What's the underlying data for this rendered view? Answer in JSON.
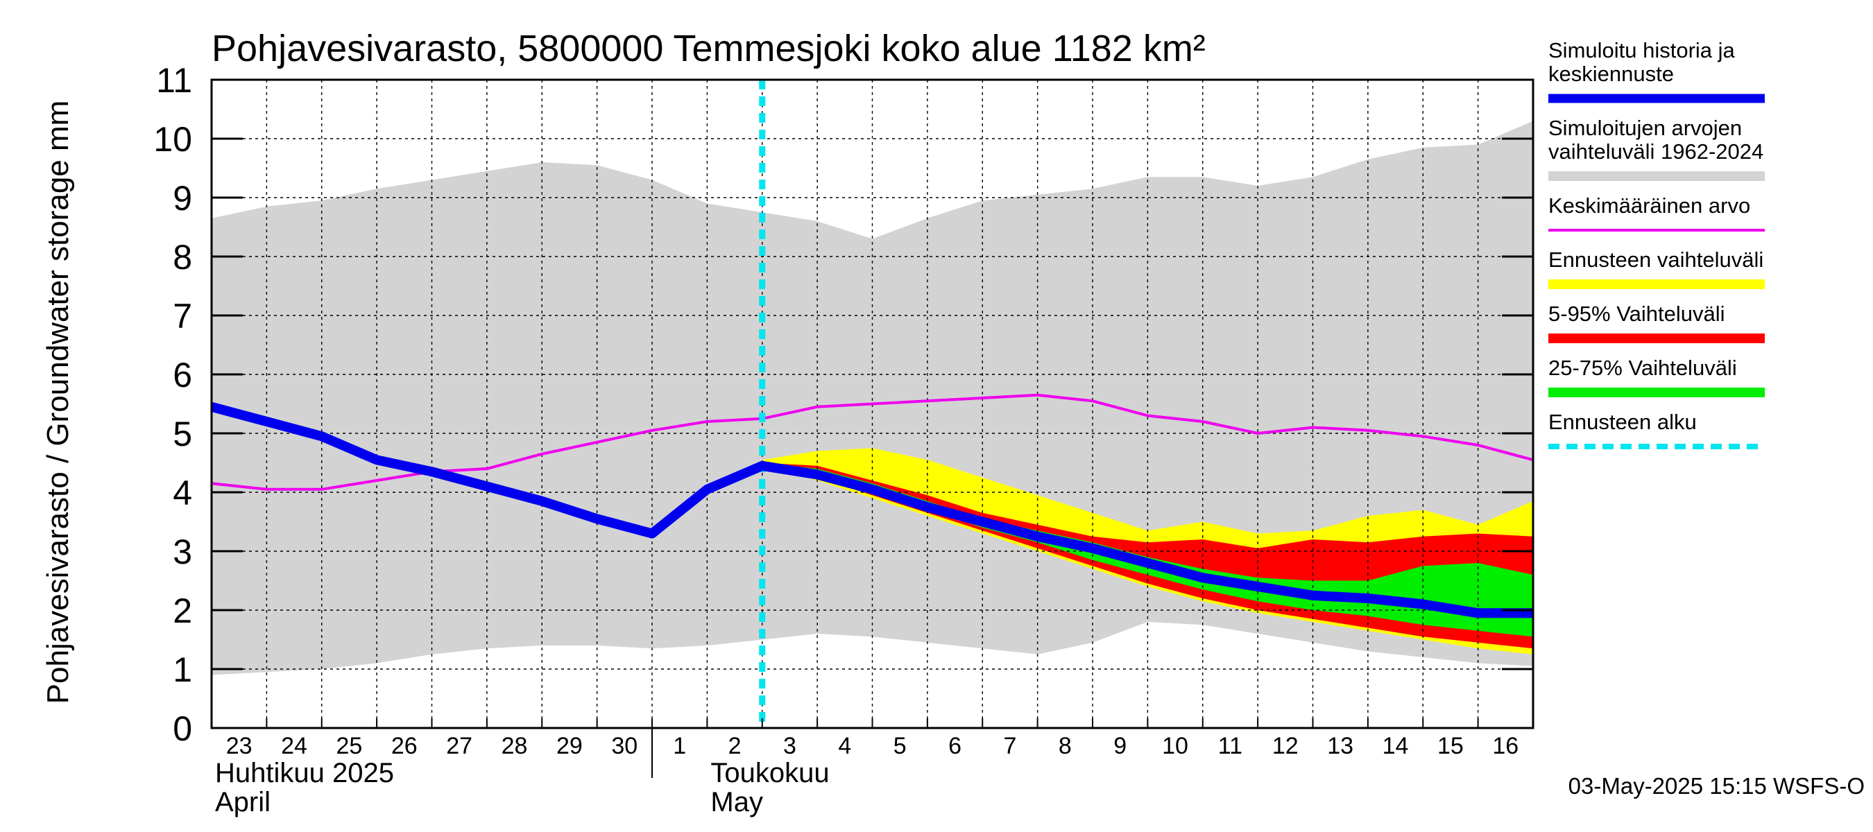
{
  "chart_data": {
    "type": "area",
    "title": "Pohjavesivarasto, 5800000 Temmesjoki koko alue 1182 km²",
    "ylabel": "Pohjavesivarasto / Groundwater storage   mm",
    "ylim": [
      0,
      11
    ],
    "yticks": [
      0,
      1,
      2,
      3,
      4,
      5,
      6,
      7,
      8,
      9,
      10,
      11
    ],
    "xlim": [
      0,
      24
    ],
    "grid": true,
    "x_tick_labels": [
      "23",
      "24",
      "25",
      "26",
      "27",
      "28",
      "29",
      "30",
      "1",
      "2",
      "3",
      "4",
      "5",
      "6",
      "7",
      "8",
      "9",
      "10",
      "11",
      "12",
      "13",
      "14",
      "15",
      "16"
    ],
    "month_labels": [
      {
        "fi": "Huhtikuu  2025",
        "en": "April",
        "x": 0
      },
      {
        "fi": "Toukokuu",
        "en": "May",
        "x": 9
      }
    ],
    "month_divider_x": 8,
    "forecast_start_x": 10,
    "timestamp": "03-May-2025 15:15 WSFS-O",
    "legend": [
      {
        "label": "Simuloitu historia ja keskiennuste",
        "color": "#0000ee",
        "style": "thick"
      },
      {
        "label": "Simuloitujen arvojen vaihteluväli 1962-2024",
        "color": "#d3d3d3",
        "style": "band"
      },
      {
        "label": "Keskimääräinen arvo",
        "color": "#ee00ee",
        "style": "thin"
      },
      {
        "label": "Ennusteen vaihteluväli",
        "color": "#ffff00",
        "style": "band"
      },
      {
        "label": "5-95% Vaihteluväli",
        "color": "#ff0000",
        "style": "band"
      },
      {
        "label": "25-75% Vaihteluväli",
        "color": "#00ee00",
        "style": "band"
      },
      {
        "label": "Ennusteen alku",
        "color": "#00e5ee",
        "style": "dashed"
      }
    ],
    "series": [
      {
        "name": "hist_range",
        "x": [
          0,
          1,
          2,
          3,
          4,
          5,
          6,
          7,
          8,
          9,
          10,
          11,
          12,
          13,
          14,
          15,
          16,
          17,
          18,
          19,
          20,
          21,
          22,
          23,
          24
        ],
        "upper": [
          8.65,
          8.85,
          8.95,
          9.15,
          9.3,
          9.45,
          9.6,
          9.55,
          9.3,
          8.9,
          8.75,
          8.6,
          8.3,
          8.65,
          8.95,
          9.05,
          9.15,
          9.35,
          9.35,
          9.2,
          9.35,
          9.65,
          9.85,
          9.9,
          10.3
        ],
        "lower": [
          0.9,
          0.95,
          1.0,
          1.1,
          1.25,
          1.35,
          1.4,
          1.4,
          1.35,
          1.4,
          1.5,
          1.6,
          1.55,
          1.45,
          1.35,
          1.25,
          1.45,
          1.8,
          1.75,
          1.6,
          1.45,
          1.3,
          1.2,
          1.1,
          1.05
        ]
      },
      {
        "name": "mean",
        "x": [
          0,
          1,
          2,
          3,
          4,
          5,
          6,
          7,
          8,
          9,
          10,
          11,
          12,
          13,
          14,
          15,
          16,
          17,
          18,
          19,
          20,
          21,
          22,
          23,
          24
        ],
        "values": [
          4.15,
          4.05,
          4.05,
          4.2,
          4.35,
          4.4,
          4.65,
          4.85,
          5.05,
          5.2,
          5.25,
          5.45,
          5.5,
          5.55,
          5.6,
          5.65,
          5.55,
          5.3,
          5.2,
          5.0,
          5.1,
          5.05,
          4.95,
          4.8,
          4.55
        ]
      },
      {
        "name": "forecast_range",
        "x": [
          10,
          11,
          12,
          13,
          14,
          15,
          16,
          17,
          18,
          19,
          20,
          21,
          22,
          23,
          24
        ],
        "upper": [
          4.55,
          4.7,
          4.75,
          4.55,
          4.25,
          3.95,
          3.65,
          3.35,
          3.5,
          3.3,
          3.35,
          3.6,
          3.7,
          3.45,
          3.85
        ],
        "lower": [
          4.45,
          4.2,
          3.9,
          3.6,
          3.3,
          3.0,
          2.7,
          2.4,
          2.15,
          1.95,
          1.8,
          1.65,
          1.5,
          1.35,
          1.25
        ]
      },
      {
        "name": "p5_95",
        "x": [
          10,
          11,
          12,
          13,
          14,
          15,
          16,
          17,
          18,
          19,
          20,
          21,
          22,
          23,
          24
        ],
        "upper": [
          4.5,
          4.45,
          4.2,
          3.95,
          3.65,
          3.45,
          3.25,
          3.15,
          3.2,
          3.05,
          3.2,
          3.15,
          3.25,
          3.3,
          3.25
        ],
        "lower": [
          4.45,
          4.25,
          3.95,
          3.65,
          3.35,
          3.05,
          2.75,
          2.45,
          2.2,
          2.0,
          1.85,
          1.7,
          1.55,
          1.45,
          1.35
        ]
      },
      {
        "name": "p25_75",
        "x": [
          10,
          11,
          12,
          13,
          14,
          15,
          16,
          17,
          18,
          19,
          20,
          21,
          22,
          23,
          24
        ],
        "upper": [
          4.5,
          4.4,
          4.15,
          3.85,
          3.55,
          3.35,
          3.15,
          2.9,
          2.7,
          2.55,
          2.5,
          2.5,
          2.75,
          2.8,
          2.6
        ],
        "lower": [
          4.45,
          4.3,
          4.0,
          3.7,
          3.4,
          3.15,
          2.85,
          2.6,
          2.35,
          2.15,
          2.0,
          1.9,
          1.75,
          1.65,
          1.55
        ]
      },
      {
        "name": "simulated",
        "x": [
          0,
          1,
          2,
          3,
          4,
          5,
          6,
          7,
          8,
          9,
          10,
          11,
          12,
          13,
          14,
          15,
          16,
          17,
          18,
          19,
          20,
          21,
          22,
          23,
          24
        ],
        "values": [
          5.45,
          5.2,
          4.95,
          4.55,
          4.35,
          4.1,
          3.85,
          3.55,
          3.3,
          4.05,
          4.45,
          4.3,
          4.05,
          3.75,
          3.5,
          3.25,
          3.05,
          2.8,
          2.55,
          2.4,
          2.25,
          2.2,
          2.1,
          1.95,
          1.95
        ]
      }
    ]
  }
}
